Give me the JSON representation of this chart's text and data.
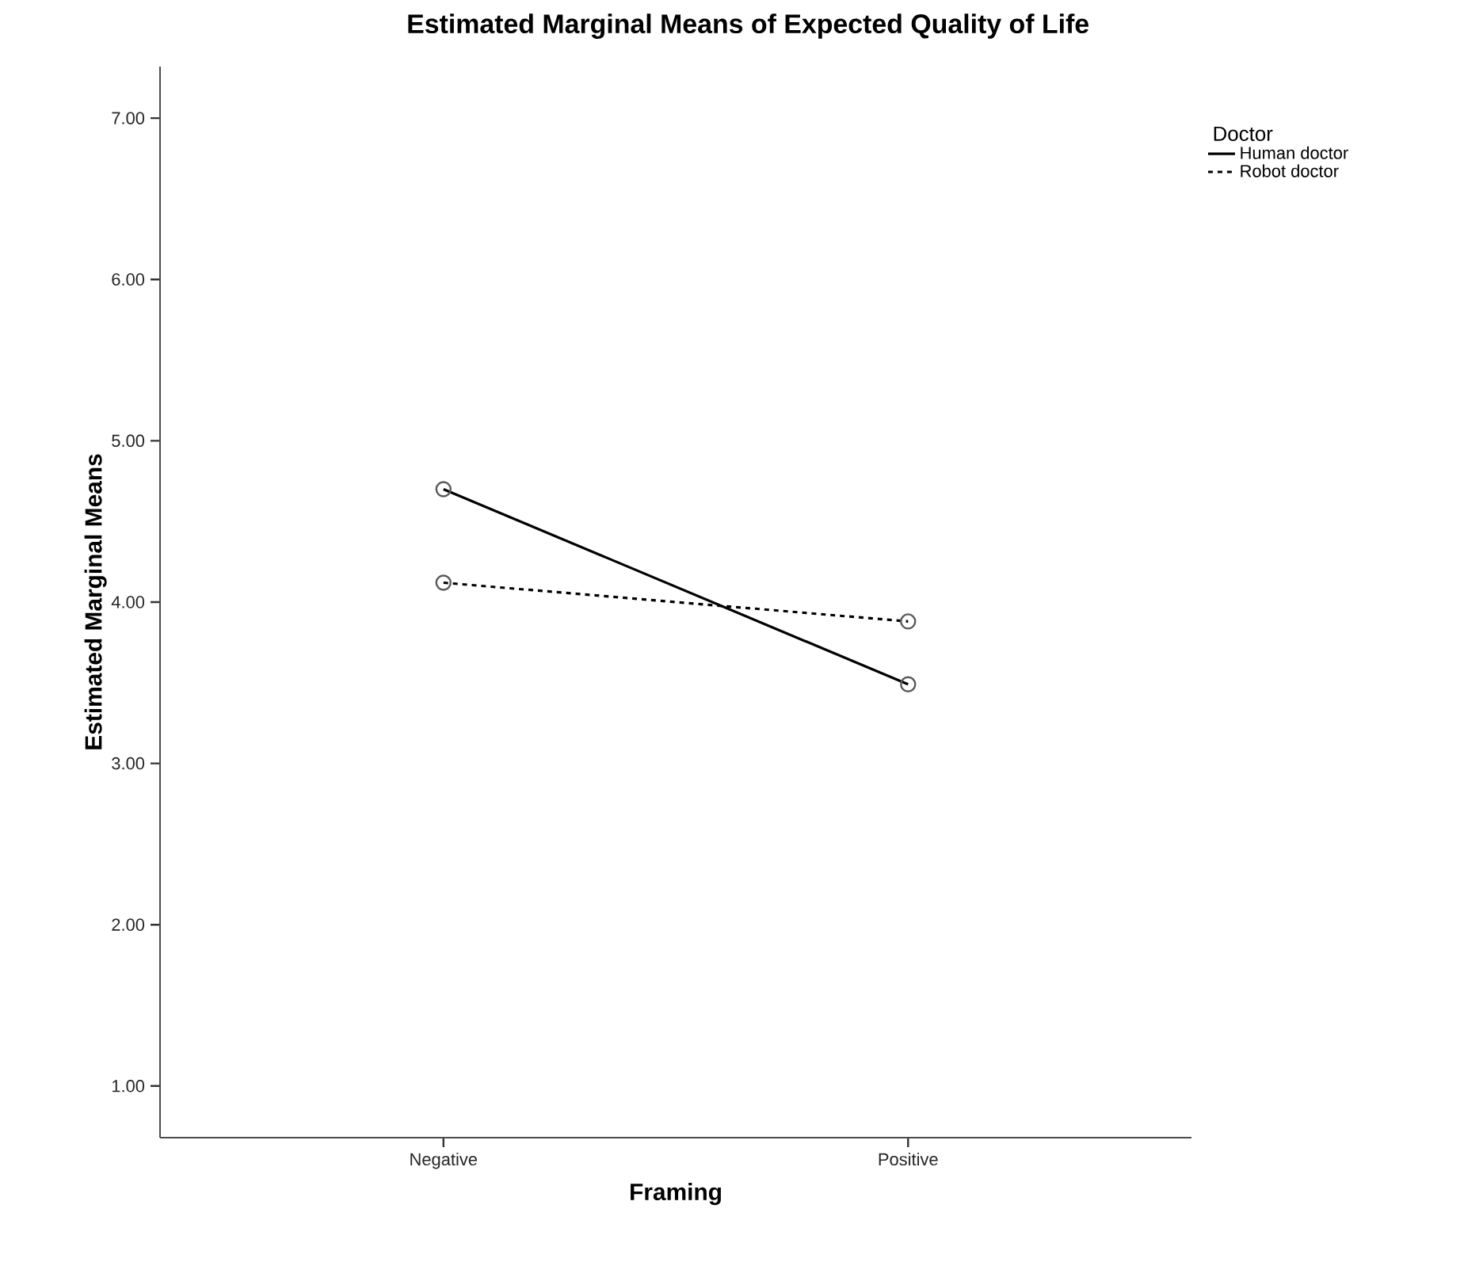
{
  "chart_data": {
    "type": "line",
    "title": "Estimated Marginal Means of Expected Quality of Life",
    "xlabel": "Framing",
    "ylabel": "Estimated Marginal Means",
    "legend_title": "Doctor",
    "categories": [
      "Negative",
      "Positive"
    ],
    "series": [
      {
        "name": "Human doctor",
        "color": "#000000",
        "line_style": "solid",
        "values": [
          4.7,
          3.49
        ]
      },
      {
        "name": "Robot doctor",
        "color": "#000000",
        "line_style": "dashed",
        "values": [
          4.12,
          3.88
        ]
      }
    ],
    "ylim": [
      0.68,
      7.32
    ],
    "yticks": [
      {
        "value": 1,
        "label": "1.00"
      },
      {
        "value": 2,
        "label": "2.00"
      },
      {
        "value": 3,
        "label": "3.00"
      },
      {
        "value": 4,
        "label": "4.00"
      },
      {
        "value": 5,
        "label": "5.00"
      },
      {
        "value": 6,
        "label": "6.00"
      },
      {
        "value": 7,
        "label": "7.00"
      }
    ],
    "marker": "circle",
    "legend": "top right",
    "grid": false
  }
}
